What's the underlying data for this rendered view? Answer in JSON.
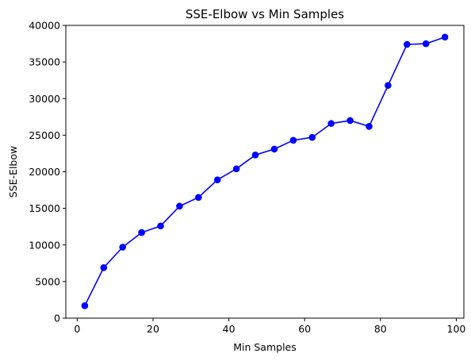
{
  "chart_data": {
    "type": "line",
    "title": "SSE-Elbow vs Min Samples",
    "xlabel": "Min Samples",
    "ylabel": "SSE-Elbow",
    "xlim": [
      -3,
      102
    ],
    "ylim": [
      0,
      40000
    ],
    "x_ticks": [
      0,
      20,
      40,
      60,
      80,
      100
    ],
    "y_ticks": [
      0,
      5000,
      10000,
      15000,
      20000,
      25000,
      30000,
      35000,
      40000
    ],
    "grid": false,
    "legend": "none",
    "series": [
      {
        "color": "#0000ff",
        "marker": "circle",
        "x": [
          2,
          7,
          12,
          17,
          22,
          27,
          32,
          37,
          42,
          47,
          52,
          57,
          62,
          67,
          72,
          77,
          82,
          87,
          92,
          97
        ],
        "y": [
          1700,
          6900,
          9700,
          11700,
          12600,
          15300,
          16500,
          18900,
          20400,
          22300,
          23100,
          24300,
          24700,
          26600,
          27000,
          26200,
          31800,
          37400,
          37500,
          38400
        ]
      }
    ]
  }
}
